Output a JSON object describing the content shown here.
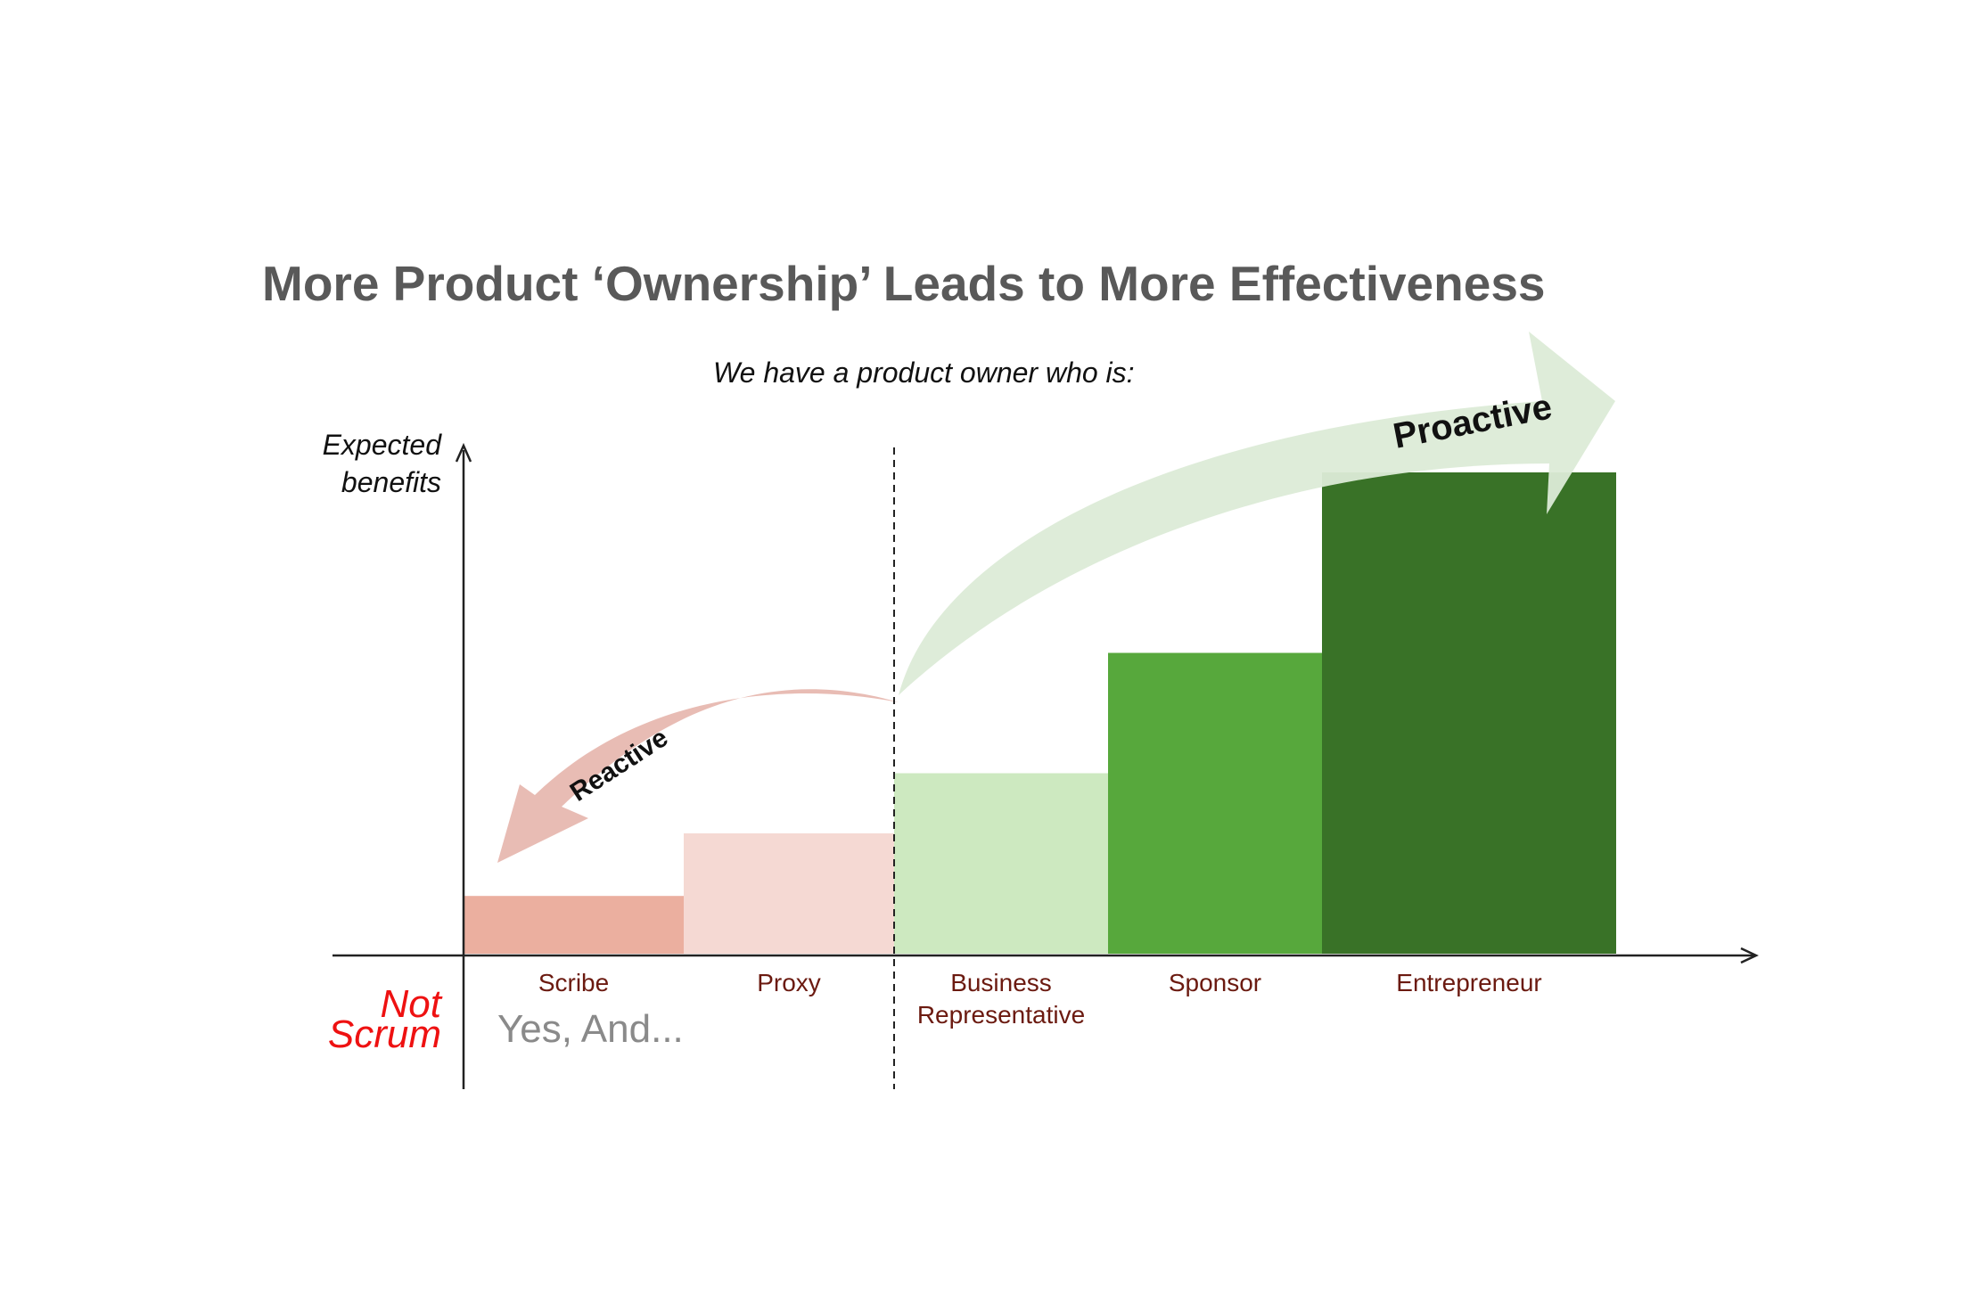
{
  "title": "More Product ‘Ownership’ Leads to More Effectiveness",
  "subtitle": "We have a product owner who is:",
  "ylabel_lines": [
    "Expected",
    "benefits"
  ],
  "not_scrum_lines": [
    "Not",
    "Scrum"
  ],
  "yes_and": "Yes, And...",
  "arrows": {
    "reactive": "Reactive",
    "proactive": "Proactive"
  },
  "colors": {
    "scribe": "#ebaf9f",
    "proxy": "#f5d9d3",
    "business": "#cde9c0",
    "sponsor": "#57a83c",
    "entrepreneur": "#397227",
    "category_text": "#6b1a10",
    "reactive_arrow": "#e7b8b0",
    "proactive_arrow": "#dcebd7"
  },
  "chart_data": {
    "type": "bar",
    "categories": [
      "Scribe",
      "Proxy",
      "Business Representative",
      "Sponsor",
      "Entrepreneur"
    ],
    "category_lines": [
      [
        "Scribe"
      ],
      [
        "Proxy"
      ],
      [
        "Business",
        "Representative"
      ],
      [
        "Sponsor"
      ],
      [
        "Entrepreneur"
      ]
    ],
    "values": [
      12,
      25,
      37.5,
      62.5,
      100
    ],
    "ylim": [
      0,
      100
    ],
    "grid": false,
    "divider_after_index": 1
  }
}
